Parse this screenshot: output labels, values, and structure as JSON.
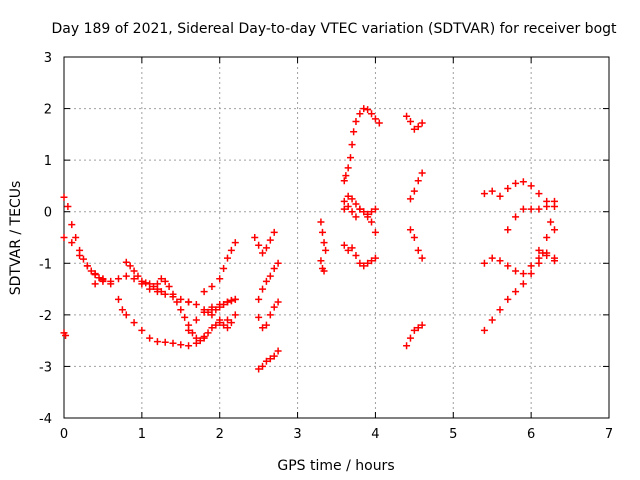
{
  "chart_data": {
    "type": "scatter",
    "title": "Day 189 of 2021, Sidereal Day-to-day VTEC variation (SDTVAR) for receiver bogt",
    "xlabel": "GPS time / hours",
    "ylabel": "SDTVAR / TECUs",
    "xlim": [
      0,
      7
    ],
    "ylim": [
      -4,
      3
    ],
    "xticks": [
      "0",
      "1",
      "2",
      "3",
      "4",
      "5",
      "6",
      "7"
    ],
    "yticks": [
      "-4",
      "-3",
      "-2",
      "-1",
      "0",
      "1",
      "2",
      "3"
    ],
    "grid": true,
    "grid_style": "dotted",
    "marker": "+",
    "marker_color": "#ff0000",
    "legend": "none",
    "series": [
      {
        "x": [
          0.0,
          0.02
        ],
        "y": [
          -2.35,
          -2.4
        ]
      },
      {
        "x": [
          0.0,
          0.05,
          0.1,
          0.15,
          0.2,
          0.25,
          0.3,
          0.35,
          0.4,
          0.45,
          0.5
        ],
        "y": [
          0.28,
          0.1,
          -0.25,
          -0.5,
          -0.75,
          -0.92,
          -1.05,
          -1.15,
          -1.22,
          -1.28,
          -1.32
        ]
      },
      {
        "x": [
          0.0,
          0.1,
          0.2,
          0.3,
          0.4,
          0.5,
          0.6,
          0.7,
          0.8,
          0.9,
          1.0,
          1.1,
          1.2,
          1.3,
          1.4,
          1.5,
          1.6
        ],
        "y": [
          -0.5,
          -0.6,
          -0.85,
          -1.05,
          -1.2,
          -1.3,
          -1.35,
          -1.3,
          -1.25,
          -1.3,
          -1.4,
          -1.5,
          -1.55,
          -1.6,
          -1.65,
          -1.7,
          -1.75
        ]
      },
      {
        "x": [
          0.4,
          0.5,
          0.6,
          0.7,
          0.75,
          0.8,
          0.9,
          1.0,
          1.1,
          1.2,
          1.3,
          1.4,
          1.5,
          1.6,
          1.7,
          1.8
        ],
        "y": [
          -1.4,
          -1.35,
          -1.4,
          -1.7,
          -1.9,
          -2.0,
          -2.15,
          -2.3,
          -2.45,
          -2.52,
          -2.53,
          -2.55,
          -2.58,
          -2.6,
          -2.55,
          -2.45
        ]
      },
      {
        "x": [
          0.8,
          0.85,
          0.9,
          0.95,
          1.0,
          1.05,
          1.1,
          1.15,
          1.2,
          1.25
        ],
        "y": [
          -0.98,
          -1.05,
          -1.15,
          -1.25,
          -1.35,
          -1.38,
          -1.4,
          -1.45,
          -1.5,
          -1.55
        ]
      },
      {
        "x": [
          1.2,
          1.25,
          1.3,
          1.35,
          1.4,
          1.45,
          1.5,
          1.55,
          1.6,
          1.65,
          1.7,
          1.75,
          1.8,
          1.85,
          1.9,
          1.95,
          2.0,
          2.1
        ],
        "y": [
          -1.4,
          -1.3,
          -1.35,
          -1.45,
          -1.6,
          -1.75,
          -1.9,
          -2.05,
          -2.2,
          -2.35,
          -2.45,
          -2.5,
          -2.42,
          -2.35,
          -2.25,
          -2.2,
          -2.15,
          -2.1
        ]
      },
      {
        "x": [
          1.6,
          1.7,
          1.8,
          1.9,
          2.0,
          2.1,
          2.15,
          2.2
        ],
        "y": [
          -2.3,
          -2.1,
          -1.95,
          -1.85,
          -1.8,
          -1.75,
          -1.73,
          -1.7
        ]
      },
      {
        "x": [
          1.6,
          1.7,
          1.8,
          1.9,
          2.0,
          2.05,
          2.1,
          2.15,
          2.2
        ],
        "y": [
          -1.75,
          -1.8,
          -1.9,
          -2.0,
          -2.1,
          -2.2,
          -2.25,
          -2.15,
          -2.0
        ]
      },
      {
        "x": [
          1.8,
          1.9,
          2.0,
          2.05,
          2.1,
          2.15,
          2.2
        ],
        "y": [
          -1.55,
          -1.45,
          -1.3,
          -1.1,
          -0.9,
          -0.75,
          -0.6
        ]
      },
      {
        "x": [
          1.85,
          1.9,
          1.95,
          2.0,
          2.05,
          2.1,
          2.15,
          2.2
        ],
        "y": [
          -1.95,
          -1.9,
          -1.9,
          -1.85,
          -1.8,
          -1.75,
          -1.72,
          -1.7
        ]
      },
      {
        "x": [
          2.45,
          2.5,
          2.55,
          2.6,
          2.65,
          2.7
        ],
        "y": [
          -0.5,
          -0.65,
          -0.8,
          -0.7,
          -0.55,
          -0.4
        ]
      },
      {
        "x": [
          2.5,
          2.55,
          2.6,
          2.65,
          2.7,
          2.75
        ],
        "y": [
          -1.7,
          -1.5,
          -1.35,
          -1.25,
          -1.1,
          -1.0
        ]
      },
      {
        "x": [
          2.5,
          2.55,
          2.6,
          2.65,
          2.7,
          2.75
        ],
        "y": [
          -2.05,
          -2.25,
          -2.2,
          -2.0,
          -1.85,
          -1.75
        ]
      },
      {
        "x": [
          2.5,
          2.55,
          2.6,
          2.65,
          2.7,
          2.75
        ],
        "y": [
          -3.05,
          -3.0,
          -2.9,
          -2.85,
          -2.8,
          -2.7
        ]
      },
      {
        "x": [
          3.3,
          3.32,
          3.34,
          3.36
        ],
        "y": [
          -0.2,
          -0.4,
          -0.6,
          -0.75
        ]
      },
      {
        "x": [
          3.3,
          3.32,
          3.34
        ],
        "y": [
          -0.95,
          -1.1,
          -1.15
        ]
      },
      {
        "x": [
          3.6,
          3.62,
          3.65,
          3.68,
          3.7,
          3.72,
          3.75,
          3.8,
          3.85,
          3.9,
          3.95,
          4.0,
          4.05
        ],
        "y": [
          0.6,
          0.7,
          0.85,
          1.05,
          1.3,
          1.55,
          1.75,
          1.9,
          2.0,
          1.98,
          1.9,
          1.8,
          1.72
        ]
      },
      {
        "x": [
          3.6,
          3.65,
          3.7,
          3.75,
          3.8,
          3.85,
          3.9,
          3.95,
          4.0
        ],
        "y": [
          0.2,
          0.1,
          0.0,
          -0.1,
          0.05,
          0.0,
          -0.05,
          0.0,
          0.05
        ]
      },
      {
        "x": [
          3.6,
          3.65,
          3.7,
          3.75,
          3.8,
          3.85,
          3.9,
          3.95,
          4.0
        ],
        "y": [
          0.05,
          0.3,
          0.25,
          0.15,
          0.05,
          0.0,
          -0.1,
          -0.2,
          -0.4
        ]
      },
      {
        "x": [
          3.6,
          3.65,
          3.7,
          3.75,
          3.8,
          3.85,
          3.9,
          3.95,
          4.0
        ],
        "y": [
          -0.65,
          -0.75,
          -0.7,
          -0.85,
          -1.0,
          -1.05,
          -1.0,
          -0.95,
          -0.9
        ]
      },
      {
        "x": [
          4.4,
          4.45,
          4.5,
          4.55,
          4.6
        ],
        "y": [
          1.85,
          1.75,
          1.6,
          1.65,
          1.72
        ]
      },
      {
        "x": [
          4.45,
          4.5,
          4.55,
          4.6
        ],
        "y": [
          0.25,
          0.4,
          0.6,
          0.75
        ]
      },
      {
        "x": [
          4.45,
          4.5,
          4.55,
          4.6
        ],
        "y": [
          -0.35,
          -0.5,
          -0.75,
          -0.9
        ]
      },
      {
        "x": [
          4.4,
          4.45,
          4.5,
          4.55,
          4.6
        ],
        "y": [
          -2.6,
          -2.45,
          -2.3,
          -2.25,
          -2.2
        ]
      },
      {
        "x": [
          5.4,
          5.5,
          5.6,
          5.7,
          5.8,
          5.9,
          6.0,
          6.1,
          6.2,
          6.3
        ],
        "y": [
          0.35,
          0.4,
          0.3,
          0.45,
          0.55,
          0.58,
          0.5,
          0.35,
          0.2,
          0.1
        ]
      },
      {
        "x": [
          5.7,
          5.8,
          5.9,
          6.0,
          6.1,
          6.2,
          6.3
        ],
        "y": [
          -0.35,
          -0.1,
          0.05,
          0.05,
          0.05,
          0.1,
          0.2
        ]
      },
      {
        "x": [
          5.4,
          5.5,
          5.6,
          5.7,
          5.8,
          5.9,
          6.0,
          6.1,
          6.2,
          6.3
        ],
        "y": [
          -1.0,
          -0.9,
          -0.95,
          -1.05,
          -1.15,
          -1.2,
          -1.05,
          -0.9,
          -0.85,
          -0.9
        ]
      },
      {
        "x": [
          5.4,
          5.5,
          5.6,
          5.7,
          5.8,
          5.9,
          6.0,
          6.1,
          6.2,
          6.3
        ],
        "y": [
          -2.3,
          -2.1,
          -1.9,
          -1.7,
          -1.55,
          -1.4,
          -1.2,
          -1.0,
          -0.8,
          -0.95
        ]
      },
      {
        "x": [
          6.1,
          6.15,
          6.2,
          6.25,
          6.3
        ],
        "y": [
          -0.75,
          -0.8,
          -0.5,
          -0.2,
          -0.35
        ]
      }
    ]
  }
}
